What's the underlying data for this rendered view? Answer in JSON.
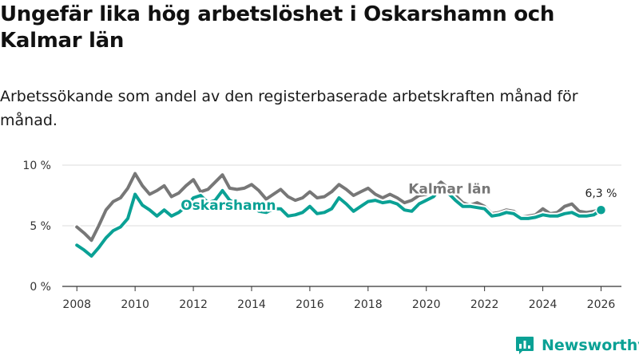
{
  "title": "Ungefär lika hög arbetslöshet i Oskarshamn och Kalmar län",
  "subtitle": "Arbetssökande som andel av den registerbaserade arbetskraften månad för månad.",
  "brand": "Newsworthy",
  "colors": {
    "oskarshamn": "#0aa195",
    "kalmar": "#777777",
    "grid": "#dddddd",
    "axis": "#333333",
    "brand": "#0aa195"
  },
  "chart_data": {
    "type": "line",
    "title": "Ungefär lika hög arbetslöshet i Oskarshamn och Kalmar län",
    "xlabel": "",
    "ylabel": "",
    "xlim": [
      2007.5,
      2026.7
    ],
    "ylim": [
      0,
      10
    ],
    "yticks": [
      0,
      5,
      10
    ],
    "ytick_labels": [
      "0 %",
      "5 %",
      "10 %"
    ],
    "xticks": [
      2008,
      2010,
      2012,
      2014,
      2016,
      2018,
      2020,
      2022,
      2024,
      2026
    ],
    "xtick_labels": [
      "2008",
      "2010",
      "2012",
      "2014",
      "2016",
      "2018",
      "2020",
      "2022",
      "2024",
      "2026"
    ],
    "grid": true,
    "end_label": "6,3 %",
    "series": [
      {
        "name": "Kalmar län",
        "label": "Kalmar län",
        "x": [
          2008.0,
          2008.25,
          2008.5,
          2008.75,
          2009.0,
          2009.25,
          2009.5,
          2009.75,
          2010.0,
          2010.25,
          2010.5,
          2010.75,
          2011.0,
          2011.25,
          2011.5,
          2011.75,
          2012.0,
          2012.25,
          2012.5,
          2012.75,
          2013.0,
          2013.25,
          2013.5,
          2013.75,
          2014.0,
          2014.25,
          2014.5,
          2014.75,
          2015.0,
          2015.25,
          2015.5,
          2015.75,
          2016.0,
          2016.25,
          2016.5,
          2016.75,
          2017.0,
          2017.25,
          2017.5,
          2017.75,
          2018.0,
          2018.25,
          2018.5,
          2018.75,
          2019.0,
          2019.25,
          2019.5,
          2019.75,
          2020.0,
          2020.25,
          2020.5,
          2020.75,
          2021.0,
          2021.25,
          2021.5,
          2021.75,
          2022.0,
          2022.25,
          2022.5,
          2022.75,
          2023.0,
          2023.25,
          2023.5,
          2023.75,
          2024.0,
          2024.25,
          2024.5,
          2024.75,
          2025.0,
          2025.25,
          2025.5,
          2025.75,
          2026.0
        ],
        "values": [
          4.9,
          4.4,
          3.8,
          5.0,
          6.3,
          7.0,
          7.3,
          8.1,
          9.3,
          8.3,
          7.6,
          7.9,
          8.3,
          7.4,
          7.7,
          8.3,
          8.8,
          7.8,
          8.0,
          8.6,
          9.2,
          8.1,
          8.0,
          8.1,
          8.4,
          7.9,
          7.2,
          7.6,
          8.0,
          7.4,
          7.1,
          7.3,
          7.8,
          7.3,
          7.4,
          7.8,
          8.4,
          8.0,
          7.5,
          7.8,
          8.1,
          7.6,
          7.3,
          7.6,
          7.3,
          6.9,
          7.1,
          7.5,
          7.6,
          8.0,
          8.6,
          8.1,
          7.5,
          6.9,
          6.7,
          6.9,
          6.6,
          6.0,
          6.1,
          6.3,
          6.2,
          5.7,
          5.8,
          5.9,
          6.4,
          6.0,
          6.1,
          6.6,
          6.8,
          6.2,
          6.1,
          6.2,
          6.3
        ]
      },
      {
        "name": "Oskarshamn",
        "label": "Oskarshamn",
        "x": [
          2008.0,
          2008.25,
          2008.5,
          2008.75,
          2009.0,
          2009.25,
          2009.5,
          2009.75,
          2010.0,
          2010.25,
          2010.5,
          2010.75,
          2011.0,
          2011.25,
          2011.5,
          2011.75,
          2012.0,
          2012.25,
          2012.5,
          2012.75,
          2013.0,
          2013.25,
          2013.5,
          2013.75,
          2014.0,
          2014.25,
          2014.5,
          2014.75,
          2015.0,
          2015.25,
          2015.5,
          2015.75,
          2016.0,
          2016.25,
          2016.5,
          2016.75,
          2017.0,
          2017.25,
          2017.5,
          2017.75,
          2018.0,
          2018.25,
          2018.5,
          2018.75,
          2019.0,
          2019.25,
          2019.5,
          2019.75,
          2020.0,
          2020.25,
          2020.5,
          2020.75,
          2021.0,
          2021.25,
          2021.5,
          2021.75,
          2022.0,
          2022.25,
          2022.5,
          2022.75,
          2023.0,
          2023.25,
          2023.5,
          2023.75,
          2024.0,
          2024.25,
          2024.5,
          2024.75,
          2025.0,
          2025.25,
          2025.5,
          2025.75,
          2026.0
        ],
        "values": [
          3.4,
          3.0,
          2.5,
          3.2,
          4.0,
          4.6,
          4.9,
          5.6,
          7.6,
          6.7,
          6.3,
          5.8,
          6.3,
          5.8,
          6.1,
          6.6,
          7.3,
          7.5,
          6.9,
          7.1,
          7.9,
          7.1,
          6.8,
          6.6,
          6.9,
          6.2,
          6.1,
          6.4,
          6.4,
          5.8,
          5.9,
          6.1,
          6.6,
          6.0,
          6.1,
          6.4,
          7.3,
          6.8,
          6.2,
          6.6,
          7.0,
          7.1,
          6.9,
          7.0,
          6.8,
          6.3,
          6.2,
          6.8,
          7.1,
          7.4,
          8.2,
          7.7,
          7.1,
          6.6,
          6.6,
          6.5,
          6.4,
          5.8,
          5.9,
          6.1,
          6.0,
          5.6,
          5.6,
          5.7,
          5.9,
          5.8,
          5.8,
          6.0,
          6.1,
          5.8,
          5.8,
          5.9,
          6.3
        ]
      }
    ]
  }
}
